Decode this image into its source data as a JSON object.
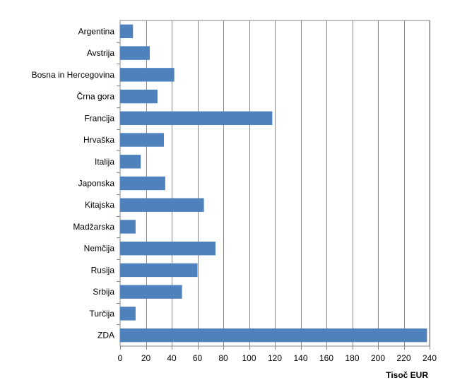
{
  "chart_data": {
    "type": "bar",
    "orientation": "horizontal",
    "categories": [
      "Argentina",
      "Avstrija",
      "Bosna in Hercegovina",
      "Črna gora",
      "Francija",
      "Hrvaška",
      "Italija",
      "Japonska",
      "Kitajska",
      "Madžarska",
      "Nemčija",
      "Rusija",
      "Srbija",
      "Turčija",
      "ZDA"
    ],
    "values": [
      10,
      23,
      42,
      29,
      118,
      34,
      16,
      35,
      65,
      12,
      74,
      60,
      48,
      12,
      238
    ],
    "xlabel": "Tisoč EUR",
    "ylabel": "",
    "xlim": [
      0,
      240
    ],
    "xticks": [
      0,
      20,
      40,
      60,
      80,
      100,
      120,
      140,
      160,
      180,
      200,
      220,
      240
    ],
    "grid": "vertical",
    "legend": "none",
    "colors": {
      "bar": "#4F81BD",
      "grid": "#868686",
      "axis": "#868686"
    }
  }
}
